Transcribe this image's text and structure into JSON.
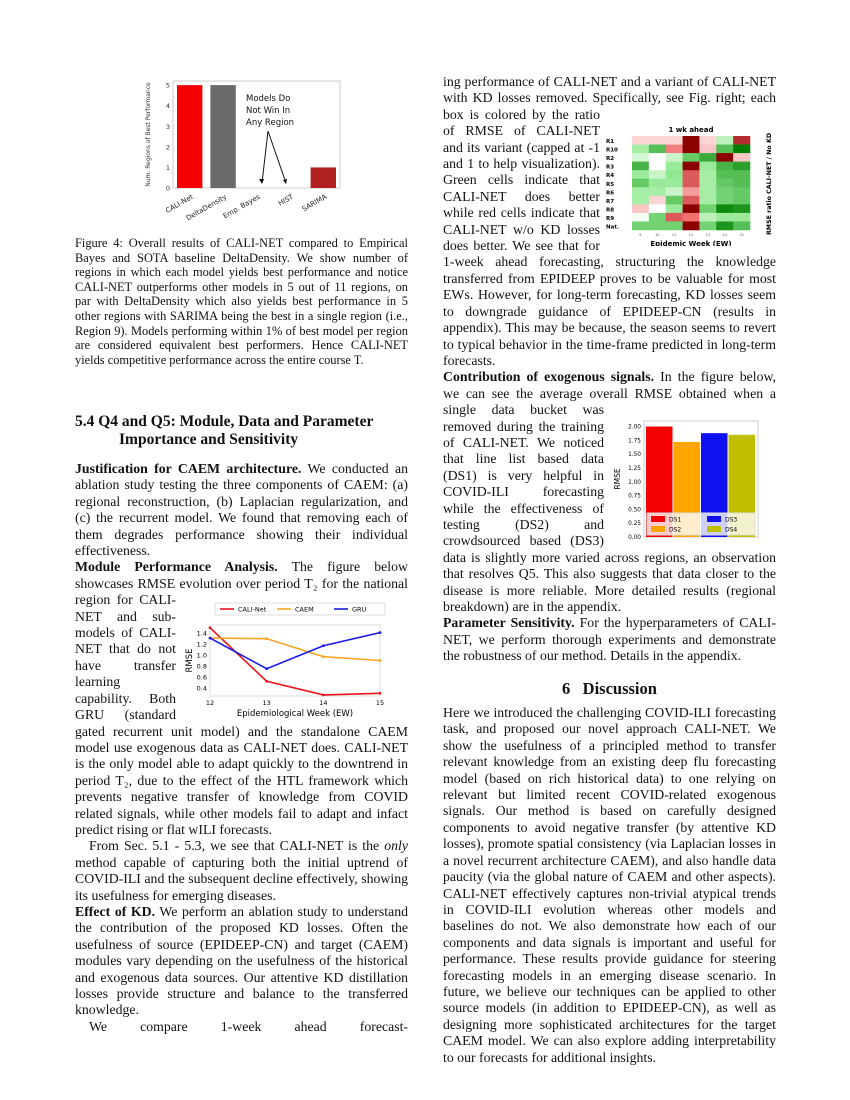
{
  "fig4": {
    "chart_data": {
      "type": "bar",
      "categories": [
        "CALI-Net",
        "DeltaDensity",
        "Emp. Bayes",
        "HIST",
        "SARIMA"
      ],
      "values": [
        5,
        5,
        0,
        0,
        1
      ],
      "colors": [
        "#f50000",
        "#6a6a6a",
        "#999999",
        "#999999",
        "#b22222"
      ],
      "ylabel": "Num. Regions of Best Performance",
      "ylim": [
        0,
        5.2
      ],
      "yticks": [
        0,
        1,
        2,
        3,
        4,
        5
      ],
      "annotation": [
        "Models Do",
        "Not Win In",
        "Any Region"
      ]
    },
    "caption": "Figure 4: Overall results of CALI-NET compared to Empirical Bayes and SOTA baseline DeltaDensity. We show number of regions in which each model yields best performance and notice CALI-NET outperforms other models in 5 out of 11 regions, on par with DeltaDensity which also yields best performance in 5 other regions with SARIMA being the best in a single region (i.e., Region 9). Models performing within 1% of best model per region are considered equivalent best performers. Hence CALI-NET yields competitive performance across the entire course T."
  },
  "section54": {
    "title": "5.4 Q4 and Q5: Module, Data and Parameter Importance and Sensitivity"
  },
  "left": {
    "just_title": "Justification for CAEM architecture.",
    "just_text": " We conducted an ablation study testing the three components of CAEM: (a) regional reconstruction, (b) Laplacian regularization, and (c) the recurrent model. We found that removing each of them degrades performance showing their individual effectiveness.",
    "module_title": "Module Performance Analysis.",
    "module_text": " The figure below showcases RMSE evolution over period T₂ for the national region for CALI-NET and sub-models of CALI-NET that do not have transfer learning capability. Both GRU (standard gated recurrent unit model) and the standalone CAEM model use exogenous data as CALI-NET does. CALI-NET is the only model able to adapt quickly to the downtrend in period T₂, due to the effect of the HTL framework which prevents negative transfer of knowledge from COVID related signals, while other models fail to adapt and infact predict rising or flat wILI forecasts.",
    "from_a": "From Sec. 5.1 - 5.3, we see that CALI-NET is the ",
    "from_em": "only",
    "from_b": " method capable of capturing both the initial uptrend of COVID-ILI and the subsequent decline effectively, showing its usefulness for emerging diseases.",
    "kd_title": "Effect of KD.",
    "kd_text": " We perform an ablation study to understand the contribution of the proposed KD losses. Often the usefulness of source (EPIDEEP-CN) and target (CAEM) modules vary depending on the usefulness of the historical and exogenous data sources. Our attentive KD distillation losses provide structure and balance to the transferred knowledge.",
    "compare": "We compare 1-week ahead forecast-"
  },
  "line_chart": {
    "chart_data": {
      "type": "line",
      "x": [
        12,
        13,
        14,
        15
      ],
      "xlabel": "Epidemiological Week (EW)",
      "ylabel": "RMSE",
      "ylim": [
        0.25,
        1.55
      ],
      "yticks": [
        0.4,
        0.6,
        0.8,
        1.0,
        1.2,
        1.4
      ],
      "legend": "top",
      "series": [
        {
          "name": "CALI-Net",
          "color": "#e8141b",
          "values": [
            1.5,
            0.52,
            0.27,
            0.3
          ]
        },
        {
          "name": "CAEM",
          "color": "#f5a623",
          "values": [
            1.31,
            1.3,
            0.97,
            0.9
          ]
        },
        {
          "name": "GRU",
          "color": "#1a1ae6",
          "values": [
            1.31,
            0.75,
            1.17,
            1.41
          ]
        }
      ]
    }
  },
  "right": {
    "p1": "ing performance of CALI-NET and a variant of CALI-NET with KD losses removed. Specifically, see Fig. right; each box is colored by the ratio of RMSE of CALI-NET and its variant (capped at -1 and 1 to help visualization). Green cells indicate that CALI-NET does better while red cells indicate that CALI-NET w/o KD losses does better. We see that for 1-week ahead forecasting, structuring the knowledge transferred from EPIDEEP proves to be valuable for most EWs. However, for long-term forecasting, KD losses seem to downgrade guidance of EPIDEEP-CN (results in appendix). This may be because, the season seems to revert to typical behavior in the time-frame predicted in long-term forecasts.",
    "contrib_title": "Contribution of exogenous signals.",
    "contrib_text": " In the figure below, we can see the average overall RMSE obtained when a single data bucket was removed during the training of CALI-NET. We noticed that line list based data (DS1) is very helpful in COVID-ILI forecasting while the effectiveness of testing (DS2) and crowdsourced based (DS3) data is slightly more varied across regions, an observation that resolves Q5. This also suggests that data closer to the disease is more reliable. More detailed results (regional breakdown) are in the appendix.",
    "param_title": "Parameter Sensitivity.",
    "param_text": " For the hyperparameters of CALI-NET, we perform thorough experiments and demonstrate the robustness of our method. Details in the appendix.",
    "disc_title": "6   Discussion",
    "disc_text": "Here we introduced the challenging COVID-ILI forecasting task, and proposed our novel approach CALI-NET. We show the usefulness of a principled method to transfer relevant knowledge from an existing deep flu forecasting model (based on rich historical data) to one relying on relevant but limited recent COVID-related exogenous signals. Our method is based on carefully designed components to avoid negative transfer (by attentive KD losses), promote spatial consistency (via Laplacian losses in a novel recurrent architecture CAEM), and also handle data paucity (via the global nature of CAEM and other aspects). CALI-NET effectively captures non-trivial atypical trends in COVID-ILI evolution whereas other models and baselines do not. We also demonstrate how each of our components and data signals is important and useful for performance. These results provide guidance for steering forecasting models in an emerging disease scenario. In future, we believe our techniques can be applied to other source models (in addition to EPIDEEP-CN), as well as designing more sophisticated architectures for the target CAEM model. We can also explore adding interpretability to our forecasts for additional insights."
  },
  "heatmap": {
    "chart_data": {
      "type": "heatmap",
      "title": "1 wk ahead",
      "xlabel": "Epidemic Week (EW)",
      "colorbar_label": "RMSE ratio CALI-NET / No KD",
      "x": [
        9,
        10,
        11,
        12,
        13,
        14,
        15
      ],
      "rows": [
        "R1",
        "R10",
        "R2",
        "R3",
        "R4",
        "R5",
        "R6",
        "R7",
        "R8",
        "R9",
        "Nat."
      ],
      "range": [
        -1,
        1
      ],
      "values": [
        [
          0.15,
          0.15,
          0.15,
          1.0,
          0.15,
          -0.3,
          0.8
        ],
        [
          -0.4,
          -0.7,
          0.45,
          1.0,
          0.2,
          -0.7,
          -1.0
        ],
        [
          -0.2,
          0,
          -0.25,
          -0.65,
          -0.8,
          1.0,
          0.2
        ],
        [
          -0.75,
          0,
          -0.45,
          1.0,
          -0.45,
          -0.75,
          -0.85
        ],
        [
          -0.45,
          -0.25,
          -0.5,
          0.6,
          -0.4,
          -0.7,
          -0.7
        ],
        [
          -0.65,
          -0.45,
          -0.45,
          0.6,
          -0.4,
          -0.65,
          -0.7
        ],
        [
          -0.4,
          -0.4,
          -0.25,
          0.35,
          -0.4,
          -0.6,
          -0.65
        ],
        [
          -0.4,
          0.15,
          -0.65,
          0.6,
          -0.4,
          -0.6,
          -0.65
        ],
        [
          0.2,
          0,
          -0.45,
          1.0,
          -0.6,
          -0.95,
          -0.9
        ],
        [
          -0.05,
          -0.6,
          0.6,
          0.5,
          -0.3,
          -0.45,
          -0.45
        ],
        [
          -0.6,
          -0.6,
          -0.6,
          1.0,
          -0.6,
          -0.9,
          -0.7
        ]
      ]
    }
  },
  "bar_chart": {
    "chart_data": {
      "type": "bar",
      "categories": [
        "DS1",
        "DS2",
        "DS3",
        "DS4"
      ],
      "values": [
        2.0,
        1.72,
        1.88,
        1.85
      ],
      "colors": [
        "#f50000",
        "#ffa500",
        "#1010f0",
        "#bfbf00"
      ],
      "ylabel": "RMSE",
      "ylim": [
        0,
        2.1
      ],
      "yticks": [
        "0.00",
        "0.25",
        "0.50",
        "0.75",
        "1.00",
        "1.25",
        "1.50",
        "1.75",
        "2.00"
      ],
      "legend": "bottom"
    }
  }
}
